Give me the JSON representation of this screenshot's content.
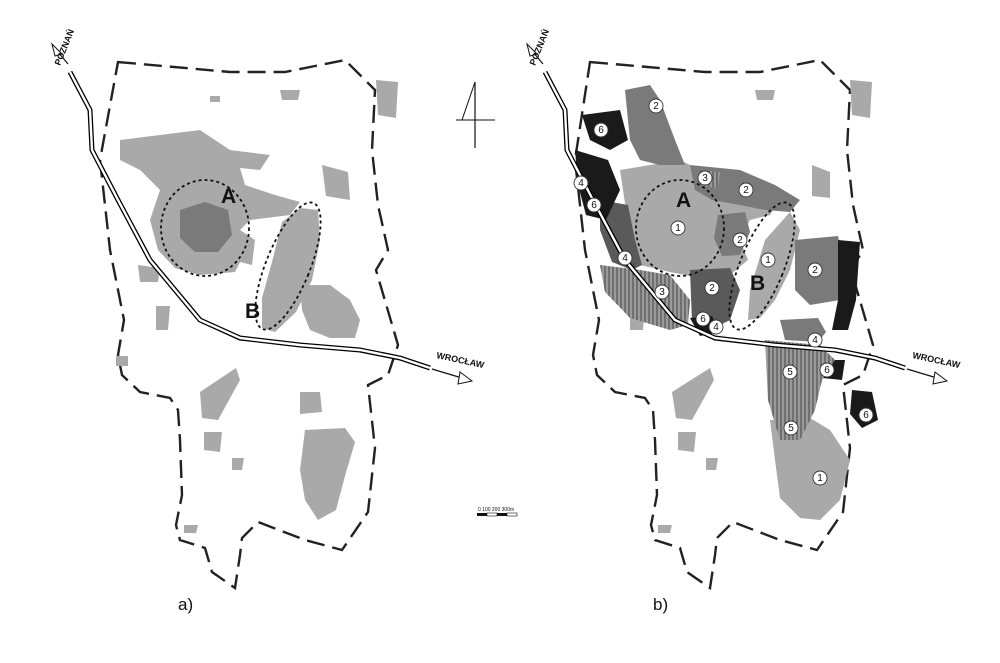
{
  "panel_a": {
    "label": "a)",
    "zone_a": "A",
    "zone_b": "B",
    "road_north": "POZNAŃ",
    "road_east": "WROCŁAW"
  },
  "panel_b": {
    "label": "b)",
    "zone_a": "A",
    "zone_b": "B",
    "road_north": "POZNAŃ",
    "road_east": "WROCŁAW",
    "area_numbers": [
      "2",
      "6",
      "3",
      "2",
      "4",
      "6",
      "1",
      "2",
      "4",
      "3",
      "2",
      "1",
      "2",
      "6",
      "4",
      "4",
      "5",
      "6",
      "5",
      "1",
      "6"
    ]
  },
  "scale_bar": {
    "text": "0 100 200 300m"
  },
  "colors": {
    "light_area": "#a9a9a9",
    "medium_area": "#7a7a7a",
    "dark_area": "#5a5a5a",
    "black_area": "#1a1a1a",
    "road": "#000000",
    "background": "#ffffff"
  },
  "icons": [
    "north-arrow-icon",
    "scale-bar-icon"
  ]
}
